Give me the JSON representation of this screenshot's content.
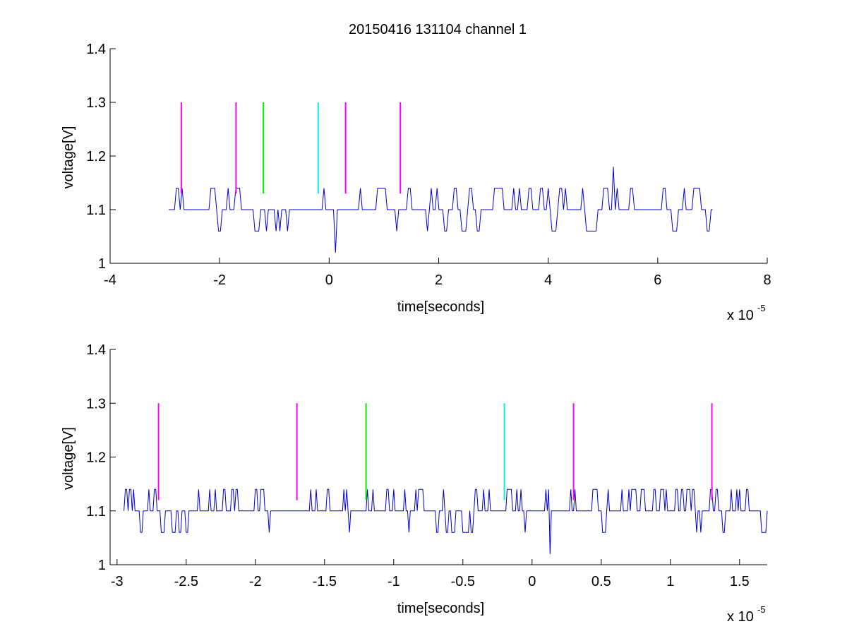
{
  "figure": {
    "title": "20150416 131104 channel 1"
  },
  "colors": {
    "signal": "#0000cc",
    "magenta_marker": "#ff00ff",
    "green_marker": "#00ee00",
    "cyan_marker": "#00eeee"
  },
  "chart_data": [
    {
      "type": "line",
      "title": "20150416 131104 channel 1",
      "xlabel": "time[seconds]",
      "ylabel": "voltage[V]",
      "x_exponent_label": "x 10",
      "x_exponent": "-5",
      "xlim": [
        -4,
        8
      ],
      "ylim": [
        1.0,
        1.4
      ],
      "xticks": [
        -4,
        -2,
        0,
        2,
        4,
        6,
        8
      ],
      "xtick_labels": [
        "-4",
        "-2",
        "0",
        "2",
        "4",
        "6",
        "8"
      ],
      "yticks": [
        1.0,
        1.1,
        1.2,
        1.3,
        1.4
      ],
      "ytick_labels": [
        "1",
        "1.1",
        "1.2",
        "1.3",
        "1.4"
      ],
      "grid": false,
      "series": [
        {
          "signal": {
            "x_range": [
              -2.93,
              7.0
            ],
            "baseline": 1.1,
            "levels": [
              1.06,
              1.1,
              1.14
            ],
            "spikes": [
              {
                "x": 5.2,
                "y": 1.18
              },
              {
                "x": 0.13,
                "y": 1.02
              }
            ]
          }
        }
      ],
      "markers": [
        {
          "x": -2.7,
          "y_from": 1.13,
          "y_to": 1.3,
          "color": "magenta"
        },
        {
          "x": -1.7,
          "y_from": 1.13,
          "y_to": 1.3,
          "color": "magenta"
        },
        {
          "x": -1.2,
          "y_from": 1.13,
          "y_to": 1.3,
          "color": "green"
        },
        {
          "x": -0.2,
          "y_from": 1.13,
          "y_to": 1.3,
          "color": "cyan"
        },
        {
          "x": 0.3,
          "y_from": 1.13,
          "y_to": 1.3,
          "color": "magenta"
        },
        {
          "x": 1.3,
          "y_from": 1.13,
          "y_to": 1.3,
          "color": "magenta"
        }
      ]
    },
    {
      "type": "line",
      "title": "",
      "xlabel": "time[seconds]",
      "ylabel": "voltage[V]",
      "x_exponent_label": "x 10",
      "x_exponent": "-5",
      "xlim": [
        -3.05,
        1.7
      ],
      "ylim": [
        1.0,
        1.4
      ],
      "xticks": [
        -3,
        -2.5,
        -2,
        -1.5,
        -1,
        -0.5,
        0,
        0.5,
        1,
        1.5
      ],
      "xtick_labels": [
        "-3",
        "-2.5",
        "-2",
        "-1.5",
        "-1",
        "-0.5",
        "0",
        "0.5",
        "1",
        "1.5"
      ],
      "yticks": [
        1.0,
        1.1,
        1.2,
        1.3,
        1.4
      ],
      "ytick_labels": [
        "1",
        "1.1",
        "1.2",
        "1.3",
        "1.4"
      ],
      "grid": false,
      "series": [
        {
          "signal": {
            "x_range": [
              -2.95,
              1.7
            ],
            "baseline": 1.1,
            "levels": [
              1.06,
              1.1,
              1.14
            ],
            "spikes": [
              {
                "x": 0.13,
                "y": 1.02
              }
            ]
          }
        }
      ],
      "markers": [
        {
          "x": -2.7,
          "y_from": 1.12,
          "y_to": 1.3,
          "color": "magenta"
        },
        {
          "x": -1.7,
          "y_from": 1.12,
          "y_to": 1.3,
          "color": "magenta"
        },
        {
          "x": -1.2,
          "y_from": 1.12,
          "y_to": 1.3,
          "color": "green"
        },
        {
          "x": -0.2,
          "y_from": 1.12,
          "y_to": 1.3,
          "color": "cyan"
        },
        {
          "x": 0.3,
          "y_from": 1.12,
          "y_to": 1.3,
          "color": "magenta"
        },
        {
          "x": 1.3,
          "y_from": 1.12,
          "y_to": 1.3,
          "color": "magenta"
        }
      ]
    }
  ]
}
